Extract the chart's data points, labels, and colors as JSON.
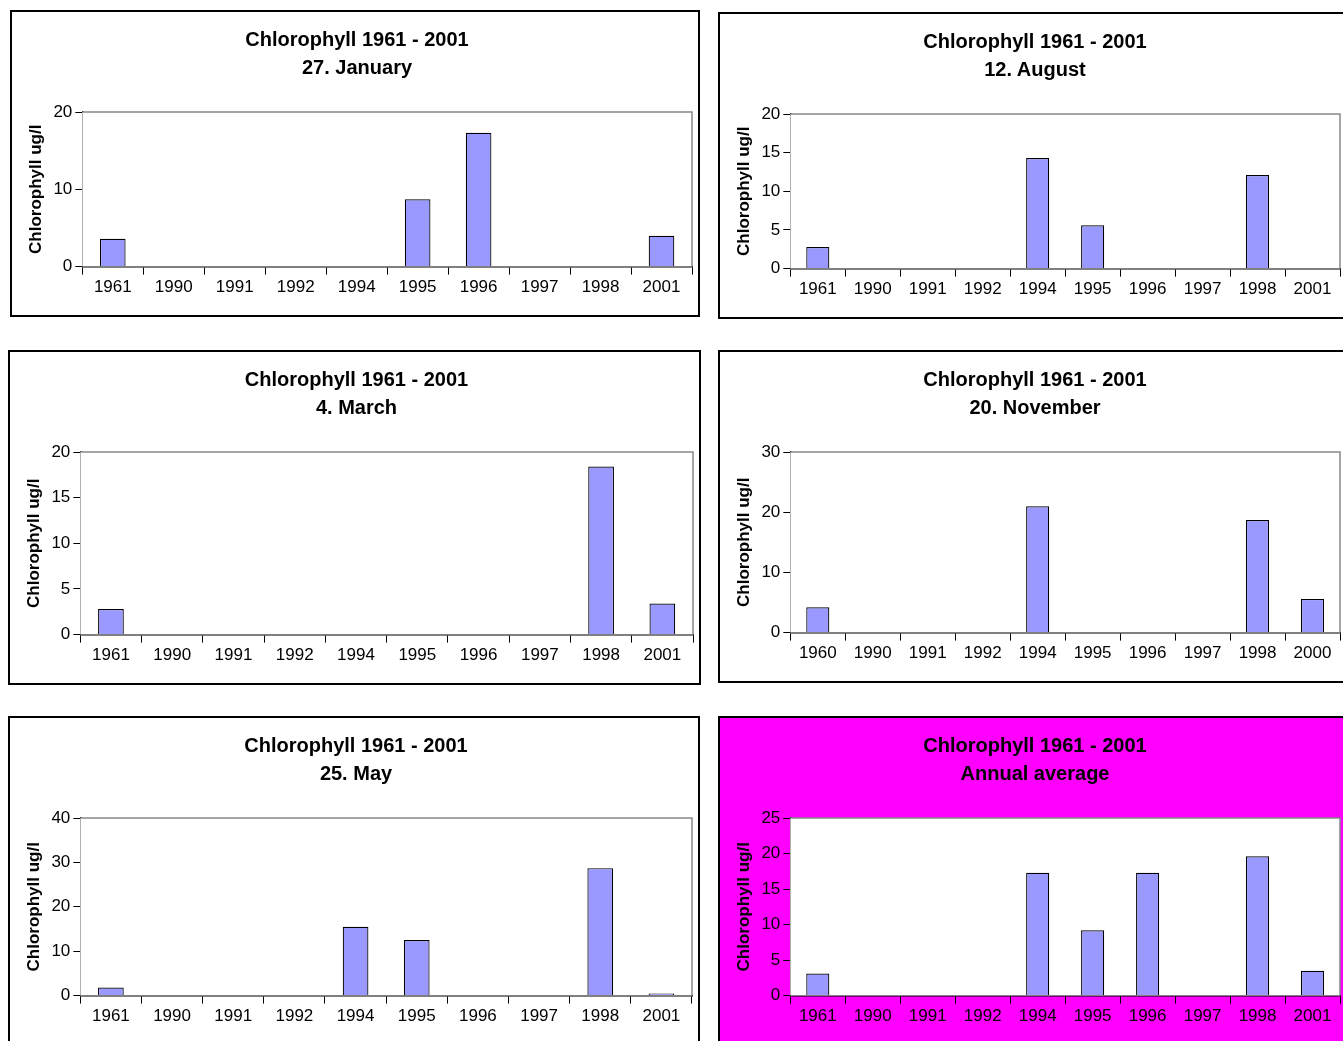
{
  "chart_data": [
    {
      "type": "bar",
      "title": "Chlorophyll 1961 - 2001",
      "subtitle": "27. January",
      "ylabel": "Chlorophyll ug/l",
      "categories": [
        "1961",
        "1990",
        "1991",
        "1992",
        "1994",
        "1995",
        "1996",
        "1997",
        "1998",
        "2001"
      ],
      "values": [
        3.6,
        null,
        null,
        null,
        null,
        8.7,
        17.3,
        null,
        null,
        4.0
      ],
      "color": "#9999ff",
      "ylim": [
        0,
        20
      ],
      "yticks": [
        0,
        10,
        20
      ],
      "grid": false,
      "legend": false
    },
    {
      "type": "bar",
      "title": "Chlorophyll 1961 - 2001",
      "subtitle": "12. August",
      "ylabel": "Chlorophyll ug/l",
      "categories": [
        "1961",
        "1990",
        "1991",
        "1992",
        "1994",
        "1995",
        "1996",
        "1997",
        "1998",
        "2001"
      ],
      "values": [
        2.8,
        null,
        null,
        null,
        14.3,
        5.6,
        null,
        null,
        12.1,
        null
      ],
      "color": "#9999ff",
      "ylim": [
        0,
        20
      ],
      "yticks": [
        0,
        5,
        10,
        15,
        20
      ],
      "grid": false,
      "legend": false
    },
    {
      "type": "bar",
      "title": "Chlorophyll 1961 - 2001",
      "subtitle": "4. March",
      "ylabel": "Chlorophyll ug/l",
      "categories": [
        "1961",
        "1990",
        "1991",
        "1992",
        "1994",
        "1995",
        "1996",
        "1997",
        "1998",
        "2001"
      ],
      "values": [
        2.8,
        null,
        null,
        null,
        null,
        null,
        null,
        null,
        18.4,
        3.4
      ],
      "color": "#9999ff",
      "ylim": [
        0,
        20
      ],
      "yticks": [
        0,
        5,
        10,
        15,
        20
      ],
      "grid": false,
      "legend": false
    },
    {
      "type": "bar",
      "title": "Chlorophyll 1961 - 2001",
      "subtitle": "20. November",
      "ylabel": "Chlorophyll ug/l",
      "categories": [
        "1960",
        "1990",
        "1991",
        "1992",
        "1994",
        "1995",
        "1996",
        "1997",
        "1998",
        "2000"
      ],
      "values": [
        4.2,
        null,
        null,
        null,
        21.0,
        null,
        null,
        null,
        18.7,
        5.6
      ],
      "color": "#9999ff",
      "ylim": [
        0,
        30
      ],
      "yticks": [
        0,
        10,
        20,
        30
      ],
      "grid": false,
      "legend": false
    },
    {
      "type": "bar",
      "title": "Chlorophyll 1961 - 2001",
      "subtitle": "25. May",
      "ylabel": "Chlorophyll ug/l",
      "categories": [
        "1961",
        "1990",
        "1991",
        "1992",
        "1994",
        "1995",
        "1996",
        "1997",
        "1998",
        "2001"
      ],
      "values": [
        1.8,
        null,
        null,
        null,
        15.5,
        12.5,
        null,
        null,
        28.7,
        0.5
      ],
      "color": "#9999ff",
      "ylim": [
        0,
        40
      ],
      "yticks": [
        0,
        10,
        20,
        30,
        40
      ],
      "grid": false,
      "legend": false
    },
    {
      "type": "bar",
      "title": "Chlorophyll 1961 - 2001",
      "subtitle": "Annual average",
      "ylabel": "Chlorophyll ug/l",
      "categories": [
        "1961",
        "1990",
        "1991",
        "1992",
        "1994",
        "1995",
        "1996",
        "1997",
        "1998",
        "2001"
      ],
      "values": [
        3.1,
        null,
        null,
        null,
        17.3,
        9.2,
        17.3,
        null,
        19.6,
        3.5
      ],
      "color": "#9999ff",
      "ylim": [
        0,
        25
      ],
      "yticks": [
        0,
        5,
        10,
        15,
        20,
        25
      ],
      "grid": false,
      "legend": false
    }
  ]
}
